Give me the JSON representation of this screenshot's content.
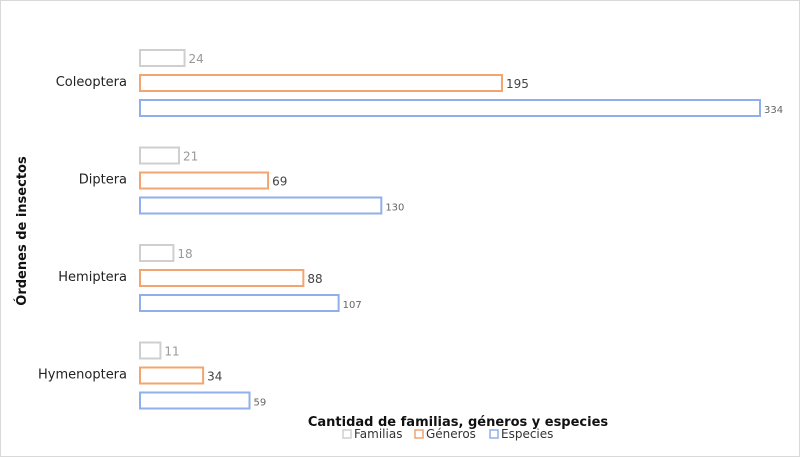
{
  "chart_data": {
    "type": "bar",
    "orientation": "horizontal",
    "categories": [
      "Coleoptera",
      "Diptera",
      "Hemiptera",
      "Hymenoptera"
    ],
    "series": [
      {
        "name": "Familias",
        "values": [
          24,
          21,
          18,
          11
        ],
        "stroke": "#cfcfcf",
        "label_color": "#999999"
      },
      {
        "name": "Géneros",
        "values": [
          195,
          69,
          88,
          34
        ],
        "stroke": "#f4a46e",
        "label_color": "#444444"
      },
      {
        "name": "Especies",
        "values": [
          334,
          130,
          107,
          59
        ],
        "stroke": "#8fb0ea",
        "label_color": "#666666"
      }
    ],
    "xlabel": "Cantidad de familias, géneros y especies",
    "ylabel": "Órdenes de insectos",
    "xlim": [
      0,
      334
    ],
    "grid": false,
    "legend_position": "bottom"
  }
}
